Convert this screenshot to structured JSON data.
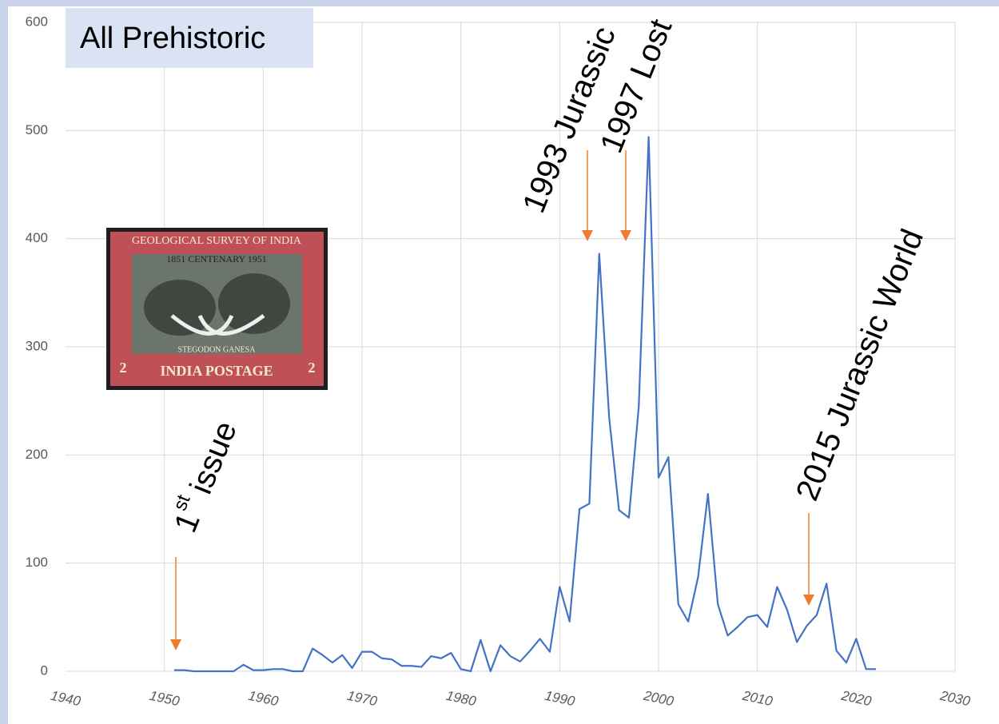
{
  "chart_data": {
    "type": "line",
    "title": "All Prehistoric",
    "x": [
      1951,
      1952,
      1953,
      1954,
      1955,
      1956,
      1957,
      1958,
      1959,
      1960,
      1961,
      1962,
      1963,
      1964,
      1965,
      1966,
      1967,
      1968,
      1969,
      1970,
      1971,
      1972,
      1973,
      1974,
      1975,
      1976,
      1977,
      1978,
      1979,
      1980,
      1981,
      1982,
      1983,
      1984,
      1985,
      1986,
      1987,
      1988,
      1989,
      1990,
      1991,
      1992,
      1993,
      1994,
      1995,
      1996,
      1997,
      1998,
      1999,
      2000,
      2001,
      2002,
      2003,
      2004,
      2005,
      2006,
      2007,
      2008,
      2009,
      2010,
      2011,
      2012,
      2013,
      2014,
      2015,
      2016,
      2017,
      2018,
      2019,
      2020,
      2021,
      2022
    ],
    "values": [
      1,
      1,
      0,
      0,
      0,
      0,
      0,
      6,
      1,
      1,
      2,
      2,
      0,
      0,
      21,
      15,
      8,
      15,
      3,
      18,
      18,
      12,
      11,
      5,
      5,
      4,
      14,
      12,
      17,
      2,
      0,
      29,
      0,
      24,
      14,
      9,
      19,
      30,
      18,
      78,
      46,
      150,
      155,
      386,
      235,
      149,
      142,
      245,
      494,
      179,
      198,
      62,
      46,
      87,
      164,
      62,
      33,
      41,
      50,
      52,
      41,
      78,
      57,
      27,
      42,
      52,
      81,
      19,
      8,
      30,
      2,
      2
    ],
    "color": "#4472c4",
    "xlim": [
      1940,
      2030
    ],
    "xticks": [
      1940,
      1950,
      1960,
      1970,
      1980,
      1990,
      2000,
      2010,
      2020,
      2030
    ],
    "ylim": [
      0,
      600
    ],
    "yticks": [
      0,
      100,
      200,
      300,
      400,
      500,
      600
    ],
    "grid": true,
    "annotations": [
      [
        "1",
        "st",
        " issue"
      ],
      [
        "1993 Jurassic"
      ],
      [
        "1997 Lost"
      ],
      [
        "2015 Jurassic World"
      ]
    ],
    "annotation_color": "#ed7d31"
  },
  "stamp": {
    "top": "GEOLOGICAL SURVEY OF INDIA",
    "years": "1851   CENTENARY   1951",
    "caption": "STEGODON GANESA",
    "bottom": "INDIA POSTAGE",
    "value": "2"
  }
}
